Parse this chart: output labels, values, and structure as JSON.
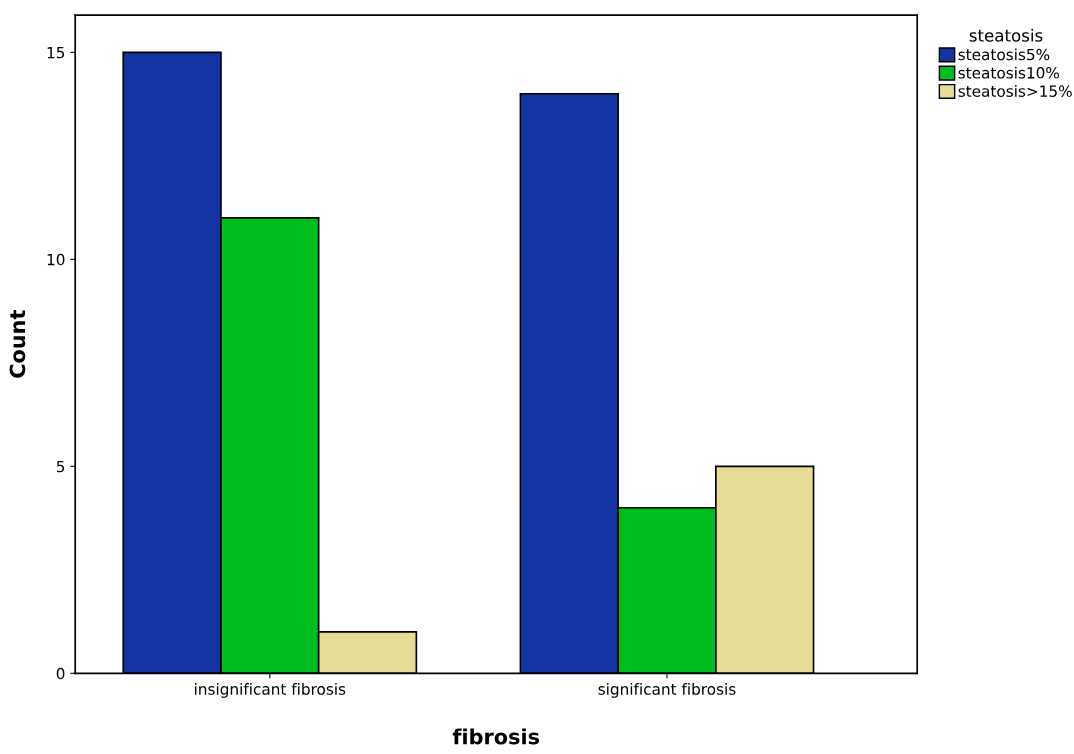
{
  "chart_data": {
    "type": "bar",
    "xlabel": "fibrosis",
    "ylabel": "Count",
    "legend_title": "steatosis",
    "legend": "top right",
    "grid": false,
    "categories": [
      "insignificant fibrosis",
      "significant fibrosis"
    ],
    "series": [
      {
        "name": "steatosis5%",
        "color": "#1434a4",
        "values": [
          15,
          14
        ]
      },
      {
        "name": "steatosis10%",
        "color": "#00be20",
        "values": [
          11,
          4
        ]
      },
      {
        "name": "steatosis>15%",
        "color": "#e6dc96",
        "values": [
          1,
          5
        ]
      }
    ],
    "ylim": [
      0,
      15.9
    ],
    "yticks": [
      0,
      5,
      10,
      15
    ]
  }
}
